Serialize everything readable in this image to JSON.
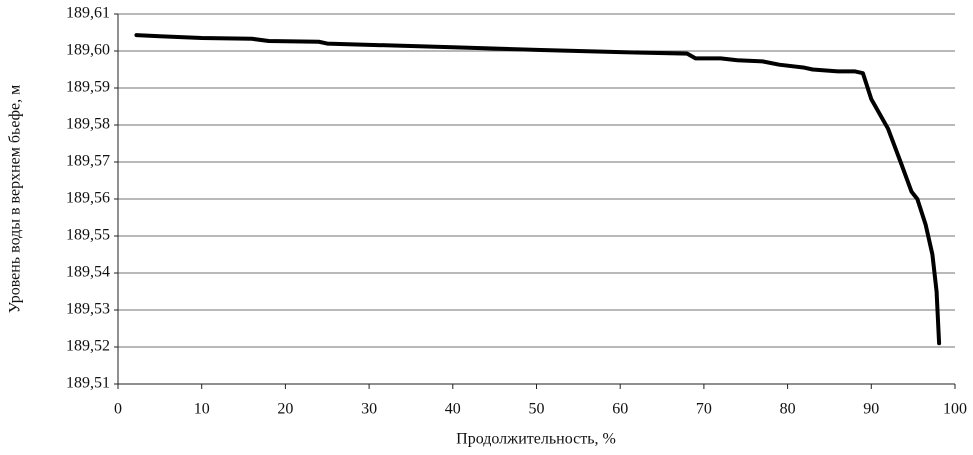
{
  "chart_data": {
    "type": "line",
    "x_label": "Продолжительность, %",
    "y_label": "Уровень воды в верхнем бьефе, м",
    "x": [
      2.2,
      5,
      10,
      16,
      18,
      24,
      25,
      40,
      50,
      60,
      68,
      69,
      72,
      74,
      77,
      79,
      82,
      83,
      86,
      88,
      89,
      90,
      92,
      93.5,
      94.8,
      95.5,
      96.5,
      97.3,
      97.8,
      98.1
    ],
    "series": [
      {
        "color": "#000000",
        "values": [
          189.6043,
          189.604,
          189.6035,
          189.6033,
          189.6027,
          189.6025,
          189.602,
          189.601,
          189.6003,
          189.5997,
          189.5993,
          189.598,
          189.598,
          189.5975,
          189.5972,
          189.5963,
          189.5955,
          189.595,
          189.5945,
          189.5945,
          189.594,
          189.587,
          189.579,
          189.57,
          189.562,
          189.56,
          189.553,
          189.545,
          189.535,
          189.521
        ]
      }
    ],
    "xlim": [
      0,
      100
    ],
    "xticks": [
      0,
      10,
      20,
      30,
      40,
      50,
      60,
      70,
      80,
      90,
      100
    ],
    "ylim": [
      189.51,
      189.61
    ],
    "yticks": [
      {
        "value": 189.51,
        "label": "189,51"
      },
      {
        "value": 189.52,
        "label": "189,52"
      },
      {
        "value": 189.53,
        "label": "189,53"
      },
      {
        "value": 189.54,
        "label": "189,54"
      },
      {
        "value": 189.55,
        "label": "189,55"
      },
      {
        "value": 189.56,
        "label": "189,56"
      },
      {
        "value": 189.57,
        "label": "189,57"
      },
      {
        "value": 189.58,
        "label": "189,58"
      },
      {
        "value": 189.59,
        "label": "189,59"
      },
      {
        "value": 189.6,
        "label": "189,60"
      },
      {
        "value": 189.61,
        "label": "189,61"
      }
    ],
    "grid": true
  }
}
